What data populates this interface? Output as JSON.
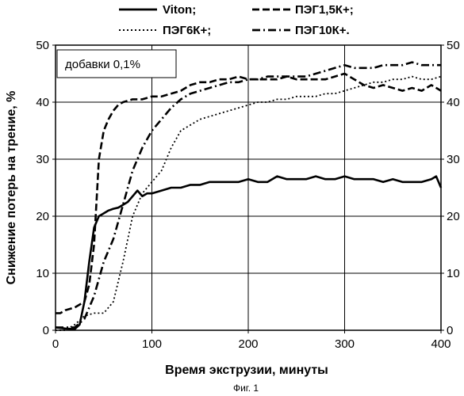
{
  "caption": "Фиг. 1",
  "chart_data": {
    "type": "line",
    "xlabel": "Время экструзии, минуты",
    "ylabel": "Снижение потерь на трение, %",
    "xlim": [
      0,
      400
    ],
    "ylim": [
      0,
      50
    ],
    "x_ticks": [
      "0",
      "100",
      "200",
      "300",
      "400"
    ],
    "y_ticks": [
      "0",
      "10",
      "20",
      "30",
      "40",
      "50"
    ],
    "y2_ticks": [
      "0",
      "10",
      "20",
      "30",
      "40",
      "50"
    ],
    "annotation": "добавки 0,1%",
    "grid": true,
    "legend_position": "top",
    "series": [
      {
        "name": "Viton;",
        "style": "solid",
        "color": "#000000",
        "x": [
          0,
          10,
          20,
          25,
          30,
          35,
          40,
          45,
          50,
          55,
          60,
          65,
          70,
          75,
          80,
          85,
          90,
          95,
          100,
          110,
          120,
          130,
          140,
          150,
          160,
          170,
          180,
          190,
          200,
          210,
          220,
          230,
          240,
          250,
          260,
          270,
          280,
          290,
          300,
          310,
          320,
          330,
          340,
          350,
          360,
          370,
          380,
          390,
          395,
          400
        ],
        "y": [
          0.5,
          0.3,
          0.2,
          1,
          5,
          12,
          18,
          20,
          20.5,
          21,
          21.3,
          21.5,
          22,
          22.5,
          23.5,
          24.5,
          23.5,
          24,
          24,
          24.5,
          25,
          25,
          25.5,
          25.5,
          26,
          26,
          26,
          26,
          26.5,
          26,
          26,
          27,
          26.5,
          26.5,
          26.5,
          27,
          26.5,
          26.5,
          27,
          26.5,
          26.5,
          26.5,
          26,
          26.5,
          26,
          26,
          26,
          26.5,
          27,
          25
        ]
      },
      {
        "name": "ПЭГ1,5К+;",
        "style": "dashed",
        "color": "#000000",
        "x": [
          0,
          5,
          10,
          20,
          30,
          35,
          40,
          45,
          50,
          55,
          60,
          65,
          70,
          80,
          90,
          100,
          110,
          120,
          130,
          140,
          150,
          160,
          170,
          180,
          190,
          200,
          210,
          220,
          230,
          240,
          250,
          260,
          270,
          280,
          290,
          300,
          310,
          320,
          330,
          340,
          350,
          360,
          370,
          380,
          390,
          400
        ],
        "y": [
          3,
          3,
          3.5,
          4,
          5,
          8,
          15,
          30,
          35,
          37,
          38.5,
          39.5,
          40,
          40.5,
          40.5,
          41,
          41,
          41.5,
          42,
          43,
          43.5,
          43.5,
          44,
          44,
          44.5,
          44,
          44,
          44,
          44,
          44.5,
          44,
          44,
          44,
          44,
          44.5,
          45,
          44,
          43,
          42.5,
          43,
          42.5,
          42,
          42.5,
          42,
          43,
          42
        ]
      },
      {
        "name": "ПЭГ6К+;",
        "style": "dotted",
        "color": "#000000",
        "x": [
          0,
          10,
          20,
          30,
          40,
          50,
          60,
          70,
          80,
          90,
          100,
          110,
          120,
          130,
          140,
          150,
          160,
          170,
          180,
          190,
          200,
          210,
          220,
          230,
          240,
          250,
          260,
          270,
          280,
          290,
          300,
          310,
          320,
          330,
          340,
          350,
          360,
          370,
          380,
          390,
          400
        ],
        "y": [
          0,
          0,
          1,
          2.5,
          3,
          3,
          5,
          12,
          20,
          24,
          26,
          28,
          32,
          35,
          36,
          37,
          37.5,
          38,
          38.5,
          39,
          39.5,
          40,
          40,
          40.5,
          40.5,
          41,
          41,
          41,
          41.5,
          41.5,
          42,
          42.5,
          43,
          43.5,
          43.5,
          44,
          44,
          44.5,
          44,
          44,
          44.5
        ]
      },
      {
        "name": "ПЭГ10К+.",
        "style": "dashdot",
        "color": "#000000",
        "x": [
          0,
          10,
          20,
          30,
          40,
          50,
          60,
          70,
          80,
          90,
          100,
          110,
          120,
          130,
          140,
          150,
          160,
          170,
          180,
          190,
          200,
          210,
          220,
          230,
          240,
          250,
          260,
          270,
          280,
          290,
          300,
          310,
          320,
          330,
          340,
          350,
          360,
          370,
          380,
          390,
          400
        ],
        "y": [
          0.5,
          0.5,
          0.5,
          2,
          6,
          12,
          16,
          22,
          28,
          32,
          35,
          37,
          39,
          40.5,
          41.5,
          42,
          42.5,
          43,
          43.5,
          43.5,
          44,
          44,
          44.5,
          44.5,
          44.5,
          44.5,
          44.5,
          45,
          45.5,
          46,
          46.5,
          46,
          46,
          46,
          46.5,
          46.5,
          46.5,
          47,
          46.5,
          46.5,
          46.5
        ]
      }
    ]
  }
}
